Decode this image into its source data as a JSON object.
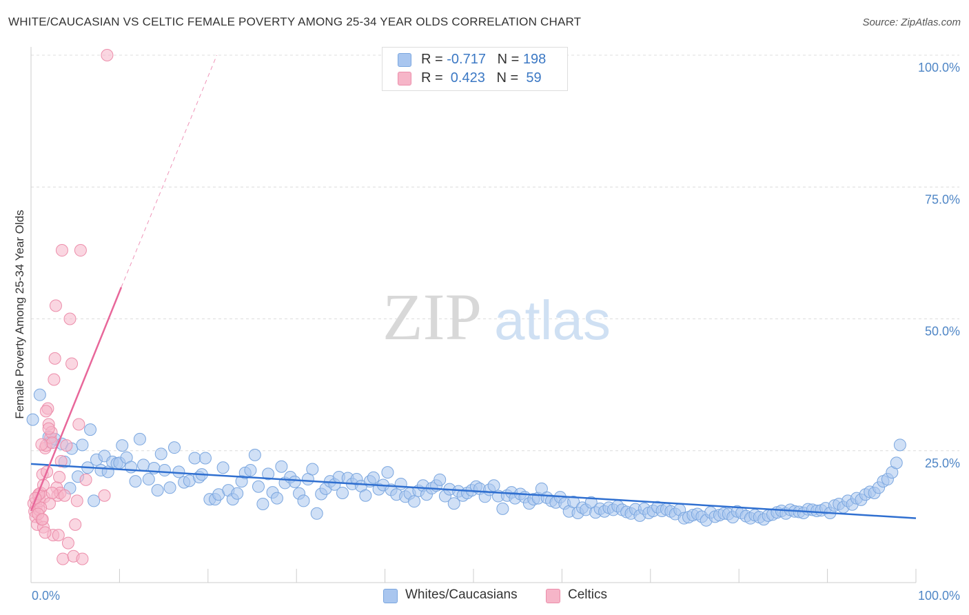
{
  "header": {
    "title": "WHITE/CAUCASIAN VS CELTIC FEMALE POVERTY AMONG 25-34 YEAR OLDS CORRELATION CHART",
    "source": "Source: ZipAtlas.com"
  },
  "watermark": {
    "zip": "ZIP",
    "atlas": "atlas"
  },
  "legend": {
    "rows": [
      {
        "r_label": "R = ",
        "r_value": "-0.717",
        "n_label": "N = ",
        "n_value": "198",
        "color": "#a9c6ef"
      },
      {
        "r_label": "R = ",
        "r_value": " 0.423",
        "n_label": "N = ",
        "n_value": " 59",
        "color": "#f6b5c8"
      }
    ]
  },
  "chart_data": {
    "type": "scatter",
    "title": "WHITE/CAUCASIAN VS CELTIC FEMALE POVERTY AMONG 25-34 YEAR OLDS CORRELATION CHART",
    "xlabel": "",
    "ylabel": "Female Poverty Among 25-34 Year Olds",
    "xlim": [
      0,
      100
    ],
    "ylim": [
      0,
      100
    ],
    "x_tick_labels": [
      "0.0%",
      "100.0%"
    ],
    "y_tick_labels": [
      "25.0%",
      "50.0%",
      "75.0%",
      "100.0%"
    ],
    "y_ticks": [
      25,
      50,
      75,
      100
    ],
    "grid": true,
    "legend_position": "bottom",
    "series": [
      {
        "name": "Whites/Caucasians",
        "color": "#a9c6ef",
        "stroke": "#7aa6df",
        "trend": {
          "x0": 0,
          "y0": 22.5,
          "x1": 100,
          "y1": 12.2,
          "color": "#2f6fd0"
        },
        "points": [
          [
            0.2,
            30.9
          ],
          [
            1.0,
            35.6
          ],
          [
            2.0,
            27.6
          ],
          [
            2.2,
            26.6
          ],
          [
            2.7,
            27.2
          ],
          [
            3.5,
            26.3
          ],
          [
            3.8,
            22.9
          ],
          [
            4.4,
            17.9
          ],
          [
            4.6,
            25.4
          ],
          [
            5.3,
            20.1
          ],
          [
            5.8,
            26.1
          ],
          [
            6.4,
            21.8
          ],
          [
            6.7,
            29.0
          ],
          [
            7.1,
            15.5
          ],
          [
            7.4,
            23.3
          ],
          [
            7.9,
            21.3
          ],
          [
            8.3,
            24.0
          ],
          [
            8.7,
            21.0
          ],
          [
            9.2,
            22.9
          ],
          [
            9.7,
            22.6
          ],
          [
            10.0,
            22.7
          ],
          [
            10.3,
            26.0
          ],
          [
            10.8,
            23.7
          ],
          [
            11.3,
            21.9
          ],
          [
            11.8,
            19.2
          ],
          [
            12.3,
            27.2
          ],
          [
            12.7,
            22.3
          ],
          [
            13.3,
            19.6
          ],
          [
            13.9,
            21.7
          ],
          [
            14.3,
            17.5
          ],
          [
            14.7,
            24.4
          ],
          [
            15.1,
            21.3
          ],
          [
            15.7,
            18.0
          ],
          [
            16.2,
            25.6
          ],
          [
            16.7,
            21.0
          ],
          [
            17.3,
            19.0
          ],
          [
            17.9,
            19.3
          ],
          [
            18.5,
            23.6
          ],
          [
            19.0,
            20.0
          ],
          [
            19.3,
            20.5
          ],
          [
            19.7,
            23.6
          ],
          [
            20.2,
            15.8
          ],
          [
            20.8,
            15.8
          ],
          [
            21.2,
            16.7
          ],
          [
            21.7,
            21.8
          ],
          [
            22.3,
            17.5
          ],
          [
            22.8,
            15.8
          ],
          [
            23.3,
            16.9
          ],
          [
            23.8,
            19.2
          ],
          [
            24.2,
            20.8
          ],
          [
            24.8,
            21.3
          ],
          [
            25.3,
            24.2
          ],
          [
            25.7,
            18.2
          ],
          [
            26.2,
            14.9
          ],
          [
            26.8,
            20.6
          ],
          [
            27.3,
            17.1
          ],
          [
            27.8,
            16.0
          ],
          [
            28.3,
            22.0
          ],
          [
            28.7,
            18.9
          ],
          [
            29.3,
            20.0
          ],
          [
            29.8,
            19.1
          ],
          [
            30.3,
            16.9
          ],
          [
            30.8,
            15.5
          ],
          [
            31.3,
            19.6
          ],
          [
            31.8,
            21.5
          ],
          [
            32.3,
            13.1
          ],
          [
            32.8,
            16.8
          ],
          [
            33.3,
            17.8
          ],
          [
            33.8,
            19.2
          ],
          [
            34.3,
            18.6
          ],
          [
            34.8,
            20.0
          ],
          [
            35.2,
            17.0
          ],
          [
            35.8,
            19.8
          ],
          [
            36.3,
            18.7
          ],
          [
            36.8,
            19.6
          ],
          [
            37.3,
            18.3
          ],
          [
            37.8,
            16.5
          ],
          [
            38.3,
            19.2
          ],
          [
            38.7,
            19.9
          ],
          [
            39.3,
            17.7
          ],
          [
            39.8,
            18.5
          ],
          [
            40.3,
            20.9
          ],
          [
            40.7,
            17.6
          ],
          [
            41.3,
            16.7
          ],
          [
            41.8,
            18.7
          ],
          [
            42.3,
            16.3
          ],
          [
            42.8,
            16.9
          ],
          [
            43.3,
            15.4
          ],
          [
            43.8,
            17.4
          ],
          [
            44.3,
            18.4
          ],
          [
            44.7,
            16.7
          ],
          [
            45.3,
            17.9
          ],
          [
            45.8,
            18.4
          ],
          [
            46.2,
            19.5
          ],
          [
            46.8,
            16.4
          ],
          [
            47.3,
            17.7
          ],
          [
            47.8,
            15.0
          ],
          [
            48.3,
            17.3
          ],
          [
            48.8,
            16.5
          ],
          [
            49.3,
            17.0
          ],
          [
            49.8,
            17.5
          ],
          [
            50.3,
            18.2
          ],
          [
            50.7,
            17.8
          ],
          [
            51.3,
            16.3
          ],
          [
            51.8,
            17.6
          ],
          [
            52.3,
            18.4
          ],
          [
            52.8,
            16.4
          ],
          [
            53.3,
            14.0
          ],
          [
            53.8,
            16.5
          ],
          [
            54.3,
            17.1
          ],
          [
            54.7,
            16.0
          ],
          [
            55.3,
            16.8
          ],
          [
            55.8,
            16.2
          ],
          [
            56.3,
            15.0
          ],
          [
            56.8,
            15.8
          ],
          [
            57.3,
            16.0
          ],
          [
            57.7,
            17.8
          ],
          [
            58.3,
            16.1
          ],
          [
            58.8,
            15.5
          ],
          [
            59.3,
            15.2
          ],
          [
            59.8,
            16.2
          ],
          [
            60.3,
            15.0
          ],
          [
            60.8,
            13.5
          ],
          [
            61.3,
            15.3
          ],
          [
            61.8,
            13.2
          ],
          [
            62.3,
            14.2
          ],
          [
            62.7,
            13.8
          ],
          [
            63.3,
            15.2
          ],
          [
            63.8,
            13.3
          ],
          [
            64.3,
            14.0
          ],
          [
            64.8,
            13.5
          ],
          [
            65.3,
            14.2
          ],
          [
            65.8,
            13.8
          ],
          [
            66.3,
            14.5
          ],
          [
            66.8,
            13.8
          ],
          [
            67.3,
            13.4
          ],
          [
            67.8,
            13.1
          ],
          [
            68.3,
            13.9
          ],
          [
            68.8,
            12.7
          ],
          [
            69.3,
            14.0
          ],
          [
            69.8,
            13.2
          ],
          [
            70.3,
            13.6
          ],
          [
            70.8,
            14.3
          ],
          [
            71.3,
            13.6
          ],
          [
            71.8,
            13.9
          ],
          [
            72.3,
            13.5
          ],
          [
            72.8,
            13.0
          ],
          [
            73.3,
            13.8
          ],
          [
            73.8,
            12.2
          ],
          [
            74.3,
            12.4
          ],
          [
            74.8,
            12.8
          ],
          [
            75.3,
            13.0
          ],
          [
            75.8,
            12.5
          ],
          [
            76.3,
            11.8
          ],
          [
            76.8,
            13.3
          ],
          [
            77.3,
            12.5
          ],
          [
            77.8,
            12.8
          ],
          [
            78.3,
            13.1
          ],
          [
            78.8,
            13.0
          ],
          [
            79.3,
            12.4
          ],
          [
            79.8,
            13.5
          ],
          [
            80.3,
            13.2
          ],
          [
            80.8,
            12.6
          ],
          [
            81.3,
            12.2
          ],
          [
            81.8,
            12.8
          ],
          [
            82.3,
            12.4
          ],
          [
            82.8,
            12.0
          ],
          [
            83.3,
            12.7
          ],
          [
            83.8,
            12.9
          ],
          [
            84.3,
            13.3
          ],
          [
            84.8,
            13.6
          ],
          [
            85.3,
            13.1
          ],
          [
            85.8,
            13.8
          ],
          [
            86.3,
            13.5
          ],
          [
            86.8,
            13.4
          ],
          [
            87.3,
            13.2
          ],
          [
            87.8,
            13.9
          ],
          [
            88.3,
            13.8
          ],
          [
            88.8,
            13.6
          ],
          [
            89.3,
            13.7
          ],
          [
            89.8,
            14.1
          ],
          [
            90.3,
            13.2
          ],
          [
            90.8,
            14.6
          ],
          [
            91.3,
            14.9
          ],
          [
            91.8,
            14.3
          ],
          [
            92.3,
            15.5
          ],
          [
            92.8,
            14.8
          ],
          [
            93.3,
            16.0
          ],
          [
            93.8,
            15.7
          ],
          [
            94.3,
            16.7
          ],
          [
            94.8,
            17.2
          ],
          [
            95.3,
            17.0
          ],
          [
            95.8,
            18.0
          ],
          [
            96.3,
            19.2
          ],
          [
            96.8,
            19.6
          ],
          [
            97.3,
            20.9
          ],
          [
            97.8,
            22.7
          ],
          [
            98.2,
            26.1
          ]
        ]
      },
      {
        "name": "Celtics",
        "color": "#f6b5c8",
        "stroke": "#ec8daa",
        "trend": {
          "x0": 0,
          "y0": 13.6,
          "x1": 10.2,
          "y1": 56.0,
          "dash_to_x": 21,
          "dash_to_y": 100.0,
          "color": "#e8679a"
        },
        "points": [
          [
            0.3,
            15.0
          ],
          [
            0.4,
            13.5
          ],
          [
            0.5,
            12.5
          ],
          [
            0.6,
            14.5
          ],
          [
            0.7,
            11.0
          ],
          [
            0.8,
            16.5
          ],
          [
            0.9,
            13.8
          ],
          [
            1.0,
            15.5
          ],
          [
            1.1,
            17.0
          ],
          [
            1.2,
            12.0
          ],
          [
            1.3,
            20.5
          ],
          [
            1.4,
            10.5
          ],
          [
            1.5,
            16.2
          ],
          [
            1.6,
            25.5
          ],
          [
            1.7,
            26.0
          ],
          [
            1.8,
            21.0
          ],
          [
            1.9,
            33.0
          ],
          [
            2.0,
            30.0
          ],
          [
            2.1,
            15.0
          ],
          [
            2.2,
            27.5
          ],
          [
            2.3,
            28.5
          ],
          [
            2.4,
            26.5
          ],
          [
            2.5,
            9.0
          ],
          [
            2.6,
            38.5
          ],
          [
            2.7,
            42.5
          ],
          [
            2.8,
            52.5
          ],
          [
            2.9,
            18.0
          ],
          [
            3.0,
            16.5
          ],
          [
            3.1,
            9.0
          ],
          [
            3.2,
            20.0
          ],
          [
            3.3,
            17.0
          ],
          [
            3.4,
            23.0
          ],
          [
            3.5,
            63.0
          ],
          [
            3.6,
            4.5
          ],
          [
            3.8,
            16.5
          ],
          [
            4.0,
            26.0
          ],
          [
            4.2,
            7.5
          ],
          [
            4.4,
            50.0
          ],
          [
            4.6,
            41.5
          ],
          [
            4.8,
            5.0
          ],
          [
            5.0,
            11.0
          ],
          [
            5.2,
            15.5
          ],
          [
            5.4,
            30.0
          ],
          [
            5.6,
            63.0
          ],
          [
            5.8,
            4.5
          ],
          [
            6.2,
            19.5
          ],
          [
            8.3,
            16.5
          ],
          [
            8.6,
            100.0
          ],
          [
            0.9,
            16.8
          ],
          [
            1.1,
            14.2
          ],
          [
            1.2,
            26.2
          ],
          [
            1.4,
            18.5
          ],
          [
            1.6,
            9.5
          ],
          [
            2.0,
            29.2
          ],
          [
            2.4,
            17.0
          ],
          [
            0.5,
            16.0
          ],
          [
            0.8,
            13.0
          ],
          [
            1.3,
            12.0
          ],
          [
            1.7,
            32.5
          ]
        ]
      }
    ]
  }
}
